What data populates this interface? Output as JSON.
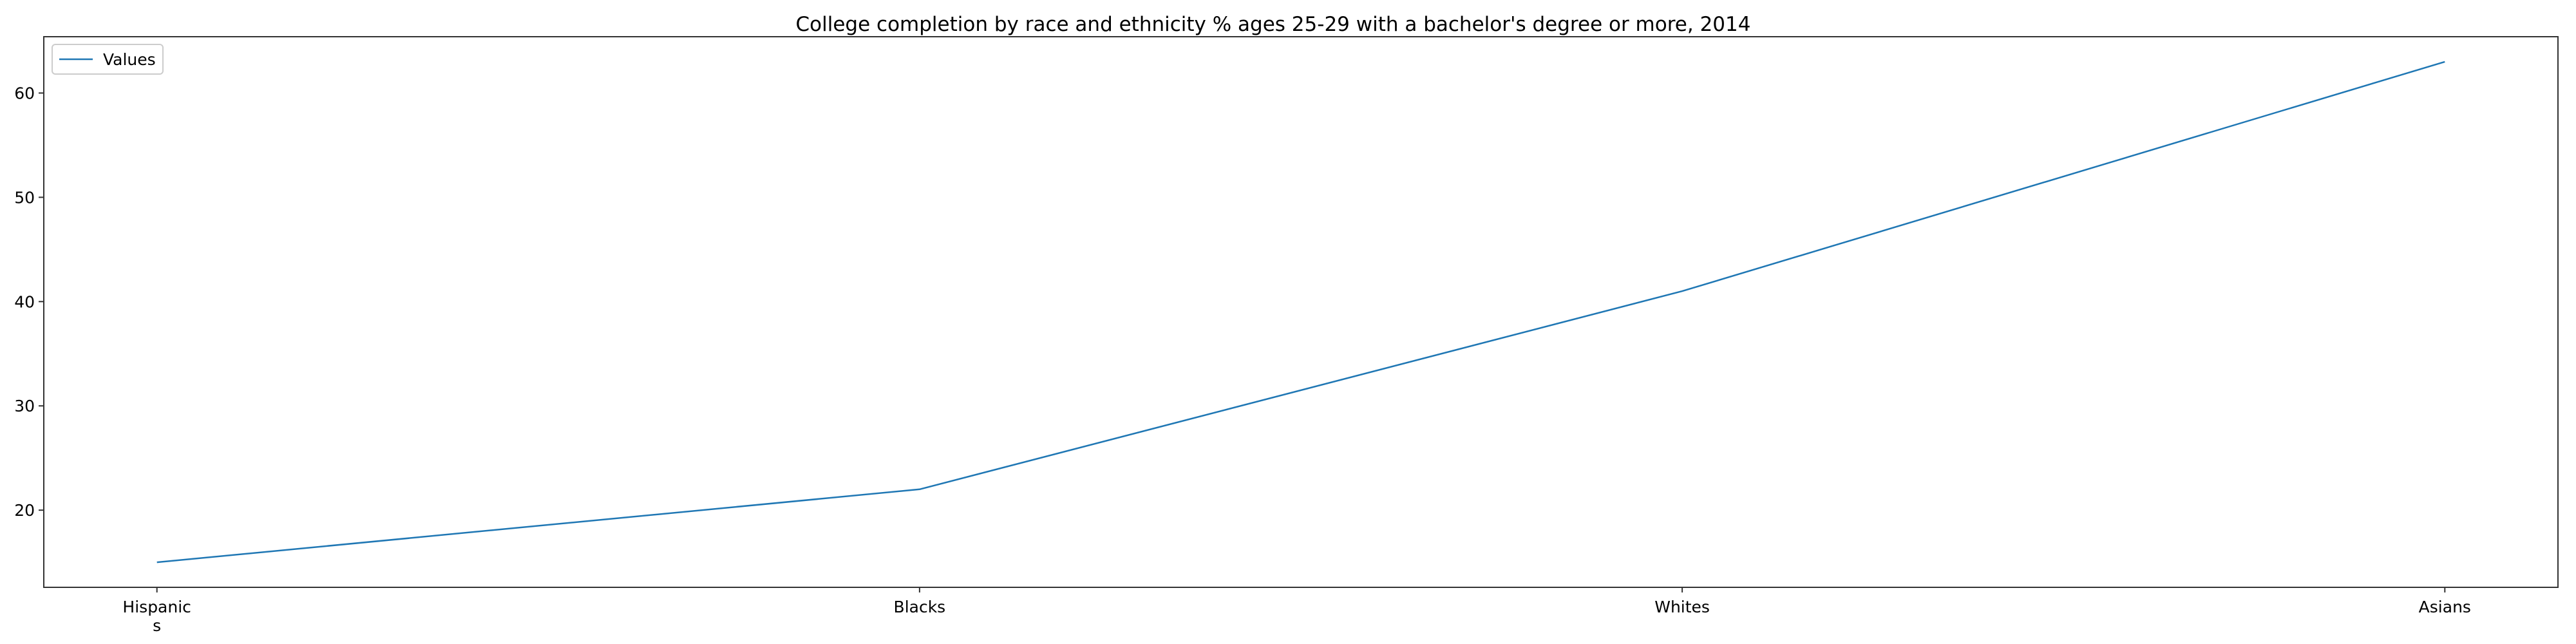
{
  "chart_data": {
    "type": "line",
    "title": "College completion by race and ethnicity % ages 25-29 with a bachelor's degree or more, 2014",
    "xlabel": "",
    "ylabel": "",
    "categories": [
      [
        "Hispanic",
        "s"
      ],
      [
        "Blacks"
      ],
      [
        "Whites"
      ],
      [
        "Asians"
      ]
    ],
    "series": [
      {
        "name": "Values",
        "values": [
          15,
          22,
          41,
          63
        ],
        "color": "#1f77b4"
      }
    ],
    "yticks": [
      20,
      30,
      40,
      50,
      60
    ],
    "ylim": [
      12.6,
      65.4
    ],
    "grid": false,
    "legend_position": "top-left"
  }
}
